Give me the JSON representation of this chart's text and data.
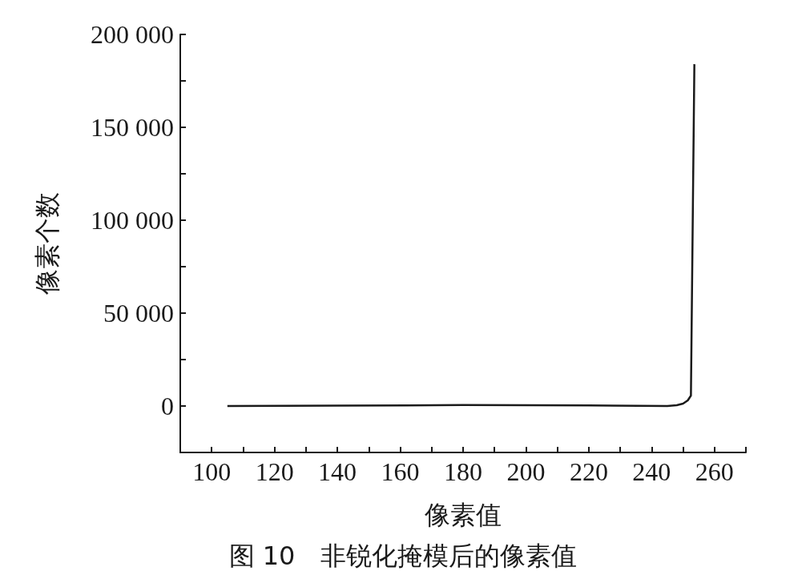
{
  "chart_data": {
    "type": "line",
    "title": "图 10　非锐化掩模后的像素值",
    "xlabel": "像素值",
    "ylabel": "像素个数",
    "x": [
      105,
      140,
      180,
      220,
      245,
      248,
      250,
      251.5,
      252.5,
      253.6
    ],
    "series": [
      {
        "color": "#1a1a1a",
        "values": [
          0,
          200,
          500,
          300,
          0,
          400,
          1300,
          3000,
          5600,
          184000
        ]
      }
    ],
    "xlim": [
      90,
      270
    ],
    "xticks": [
      100,
      {
        "value": 110,
        "label": null
      },
      120,
      {
        "value": 130,
        "label": null
      },
      140,
      {
        "value": 150,
        "label": null
      },
      160,
      {
        "value": 170,
        "label": null
      },
      180,
      {
        "value": 190,
        "label": null
      },
      200,
      {
        "value": 210,
        "label": null
      },
      220,
      {
        "value": 230,
        "label": null
      },
      240,
      {
        "value": 250,
        "label": null
      },
      260,
      {
        "value": 270,
        "label": null
      }
    ],
    "ylim": [
      -25000,
      200000
    ],
    "yticks": [
      {
        "value": 0,
        "label": "0"
      },
      {
        "value": 25000,
        "label": null
      },
      {
        "value": 50000,
        "label": "50 000"
      },
      {
        "value": 75000,
        "label": null
      },
      {
        "value": 100000,
        "label": "100 000"
      },
      {
        "value": 125000,
        "label": null
      },
      {
        "value": 150000,
        "label": "150 000"
      },
      {
        "value": 175000,
        "label": null
      },
      {
        "value": 200000,
        "label": "200 000"
      }
    ],
    "grid": false,
    "marker": "none",
    "line_style": "solid"
  }
}
